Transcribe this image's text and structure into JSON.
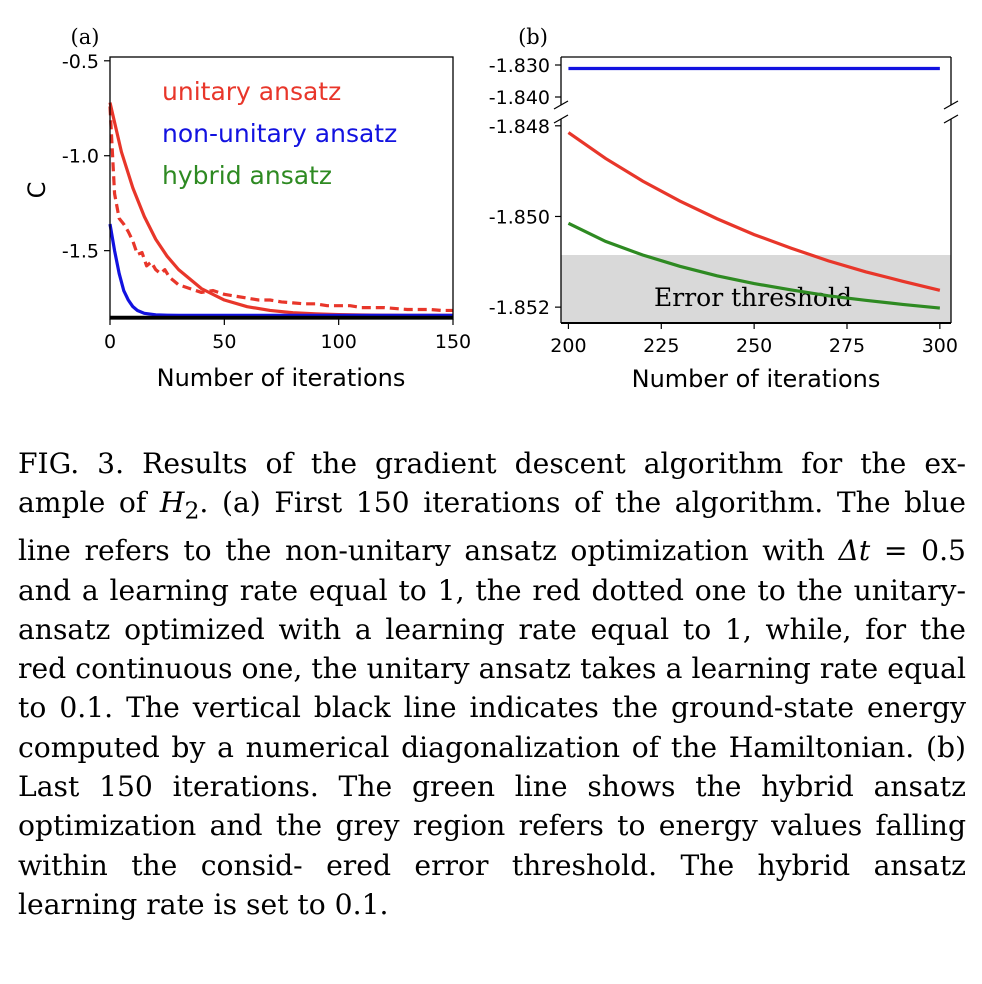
{
  "chart_data": [
    {
      "panel": "(a)",
      "type": "line",
      "ylabel": "C",
      "xlabel": "Number of iterations",
      "xlim": [
        0,
        150
      ],
      "ylim": [
        -1.86,
        -0.48
      ],
      "xticks": [
        "0",
        "50",
        "100",
        "150"
      ],
      "xtick_values": [
        0,
        50,
        100,
        150
      ],
      "yticks": [
        "-0.5",
        "-1.0",
        "-1.5"
      ],
      "ytick_values": [
        -0.5,
        -1.0,
        -1.5
      ],
      "legend": {
        "placement": "top-right",
        "entries": [
          {
            "label": "unitary ansatz",
            "color": "#e8362a"
          },
          {
            "label": "non-unitary ansatz",
            "color": "#1212e0"
          },
          {
            "label": "hybrid ansatz",
            "color": "#2e8a22"
          }
        ]
      },
      "series": [
        {
          "color": "#e8362a",
          "style": "solid",
          "x": [
            0,
            5,
            10,
            15,
            20,
            25,
            30,
            40,
            50,
            60,
            70,
            80,
            90,
            100,
            110,
            120,
            130,
            140,
            150
          ],
          "y": [
            -0.72,
            -0.98,
            -1.17,
            -1.32,
            -1.44,
            -1.53,
            -1.6,
            -1.7,
            -1.76,
            -1.795,
            -1.815,
            -1.827,
            -1.833,
            -1.837,
            -1.839,
            -1.84,
            -1.841,
            -1.841,
            -1.841
          ]
        },
        {
          "color": "#e8362a",
          "style": "dashed",
          "x": [
            0,
            2,
            4,
            6,
            8,
            10,
            12,
            14,
            16,
            18,
            20,
            22,
            24,
            26,
            28,
            30,
            35,
            40,
            45,
            50,
            55,
            60,
            65,
            70,
            75,
            80,
            85,
            90,
            95,
            100,
            105,
            110,
            115,
            120,
            125,
            130,
            135,
            140,
            145,
            150
          ],
          "y": [
            -0.74,
            -1.2,
            -1.33,
            -1.36,
            -1.4,
            -1.45,
            -1.52,
            -1.51,
            -1.58,
            -1.56,
            -1.6,
            -1.62,
            -1.6,
            -1.64,
            -1.66,
            -1.68,
            -1.7,
            -1.72,
            -1.71,
            -1.73,
            -1.74,
            -1.75,
            -1.76,
            -1.76,
            -1.77,
            -1.775,
            -1.78,
            -1.78,
            -1.79,
            -1.79,
            -1.79,
            -1.8,
            -1.8,
            -1.8,
            -1.805,
            -1.81,
            -1.81,
            -1.81,
            -1.815,
            -1.815
          ]
        },
        {
          "color": "#1212e0",
          "style": "solid",
          "x": [
            0,
            2,
            4,
            6,
            8,
            10,
            12,
            15,
            20,
            25,
            30,
            40,
            50,
            75,
            100,
            125,
            150
          ],
          "y": [
            -1.36,
            -1.5,
            -1.62,
            -1.71,
            -1.76,
            -1.795,
            -1.815,
            -1.83,
            -1.838,
            -1.84,
            -1.841,
            -1.841,
            -1.841,
            -1.841,
            -1.841,
            -1.841,
            -1.841
          ]
        },
        {
          "color": "#000000",
          "style": "solid",
          "x": [
            0,
            150
          ],
          "y": [
            -1.851,
            -1.851
          ]
        }
      ]
    },
    {
      "panel": "(b)",
      "type": "line",
      "xlabel": "Number of iterations",
      "xlim": [
        198,
        303
      ],
      "upper_ylim": [
        -1.8425,
        -1.8275
      ],
      "lower_ylim": [
        -1.85235,
        -1.84785
      ],
      "upper_yticks": [
        "-1.830",
        "-1.840"
      ],
      "upper_ytick_values": [
        -1.83,
        -1.84
      ],
      "lower_yticks": [
        "-1.848",
        "-1.850",
        "-1.852"
      ],
      "lower_ytick_values": [
        -1.848,
        -1.85,
        -1.852
      ],
      "xticks": [
        "200",
        "225",
        "250",
        "275",
        "300"
      ],
      "xtick_values": [
        200,
        225,
        250,
        275,
        300
      ],
      "shaded_region": {
        "label": "Error threshold",
        "y_range": [
          -1.85235,
          -1.85085
        ],
        "color": "#d9d9d9"
      },
      "series": [
        {
          "color": "#1212e0",
          "axis": "upper",
          "x": [
            200,
            300
          ],
          "y": [
            -1.8311,
            -1.8311
          ]
        },
        {
          "color": "#e8362a",
          "axis": "lower",
          "x": [
            200,
            210,
            220,
            230,
            240,
            250,
            260,
            270,
            280,
            290,
            300
          ],
          "y": [
            -1.84815,
            -1.84872,
            -1.84922,
            -1.84966,
            -1.85005,
            -1.8504,
            -1.8507,
            -1.85098,
            -1.85122,
            -1.85143,
            -1.85163
          ]
        },
        {
          "color": "#2e8a22",
          "axis": "lower",
          "x": [
            200,
            210,
            220,
            230,
            240,
            250,
            260,
            270,
            280,
            290,
            300
          ],
          "y": [
            -1.85015,
            -1.85055,
            -1.85085,
            -1.8511,
            -1.85131,
            -1.85148,
            -1.85162,
            -1.85175,
            -1.85185,
            -1.85194,
            -1.85202
          ]
        },
        {
          "color": "#000000",
          "axis": "lower",
          "x": [
            198,
            303
          ],
          "y": [
            -1.85235,
            -1.85235
          ]
        }
      ]
    }
  ],
  "caption": {
    "fig_label": "FIG. 3.",
    "text_1": " Results of the gradient descent algorithm for the ex- ample of ",
    "math_1": "H",
    "math_1_sub": "2",
    "text_2": ". (a) First 150 iterations of the algorithm. The blue line refers to the non-unitary ansatz optimization with ",
    "math_2": "Δt",
    "text_3": " = 0.5 and a learning rate equal to 1, the red dotted one to the unitary-ansatz optimized with a learning rate equal to 1, while, for the red continuous one, the unitary ansatz takes a learning rate equal to 0.1. The vertical black line indicates the ground-state energy computed by a numerical diagonalization of the Hamiltonian. (b) Last 150 iterations. The green line shows the hybrid ansatz optimization and the grey region refers to energy values falling within the consid- ered error threshold. The hybrid ansatz learning rate is set to 0.1."
  }
}
